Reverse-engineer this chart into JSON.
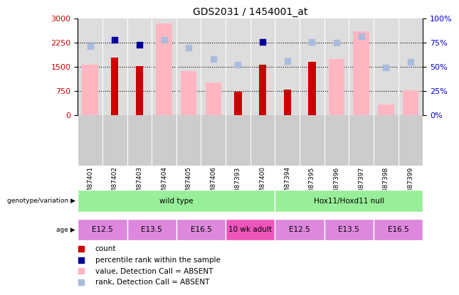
{
  "title": "GDS2031 / 1454001_at",
  "samples": [
    "GSM87401",
    "GSM87402",
    "GSM87403",
    "GSM87404",
    "GSM87405",
    "GSM87406",
    "GSM87393",
    "GSM87400",
    "GSM87394",
    "GSM87395",
    "GSM87396",
    "GSM87397",
    "GSM87398",
    "GSM87399"
  ],
  "count_values": [
    null,
    1800,
    1520,
    null,
    null,
    null,
    720,
    1560,
    790,
    1650,
    null,
    null,
    null,
    null
  ],
  "percentile_rank": [
    null,
    2350,
    2200,
    null,
    null,
    null,
    null,
    2270,
    null,
    null,
    null,
    null,
    null,
    null
  ],
  "value_absent": [
    1580,
    null,
    null,
    2850,
    1380,
    1020,
    null,
    null,
    null,
    null,
    1750,
    2600,
    340,
    780
  ],
  "rank_absent": [
    2150,
    null,
    null,
    2350,
    2100,
    1750,
    1580,
    null,
    1670,
    2270,
    2260,
    2450,
    1480,
    1650
  ],
  "ylim_left": [
    0,
    3000
  ],
  "ylim_right": [
    0,
    100
  ],
  "yticks_left": [
    0,
    750,
    1500,
    2250,
    3000
  ],
  "yticks_right": [
    0,
    25,
    50,
    75,
    100
  ],
  "genotype_groups": [
    {
      "label": "wild type",
      "start": 0,
      "end": 8
    },
    {
      "label": "Hox11/Hoxd11 null",
      "start": 8,
      "end": 14
    }
  ],
  "age_groups": [
    {
      "label": "E12.5",
      "start": 0,
      "end": 2,
      "color": "#DD88DD"
    },
    {
      "label": "E13.5",
      "start": 2,
      "end": 4,
      "color": "#DD88DD"
    },
    {
      "label": "E16.5",
      "start": 4,
      "end": 6,
      "color": "#DD88DD"
    },
    {
      "label": "10 wk adult",
      "start": 6,
      "end": 8,
      "color": "#EE55BB"
    },
    {
      "label": "E12.5",
      "start": 8,
      "end": 10,
      "color": "#DD88DD"
    },
    {
      "label": "E13.5",
      "start": 10,
      "end": 12,
      "color": "#DD88DD"
    },
    {
      "label": "E16.5",
      "start": 12,
      "end": 14,
      "color": "#DD88DD"
    }
  ],
  "count_color": "#CC0000",
  "percentile_color": "#000099",
  "value_absent_color": "#FFB6C1",
  "rank_absent_color": "#AABBDD",
  "background_color": "#FFFFFF",
  "plot_bg_color": "#DDDDDD",
  "xticklabel_bg": "#CCCCCC",
  "geno_color": "#99EE99",
  "legend_items": [
    {
      "color": "#CC0000",
      "label": "count"
    },
    {
      "color": "#000099",
      "label": "percentile rank within the sample"
    },
    {
      "color": "#FFB6C1",
      "label": "value, Detection Call = ABSENT"
    },
    {
      "color": "#AABBDD",
      "label": "rank, Detection Call = ABSENT"
    }
  ]
}
